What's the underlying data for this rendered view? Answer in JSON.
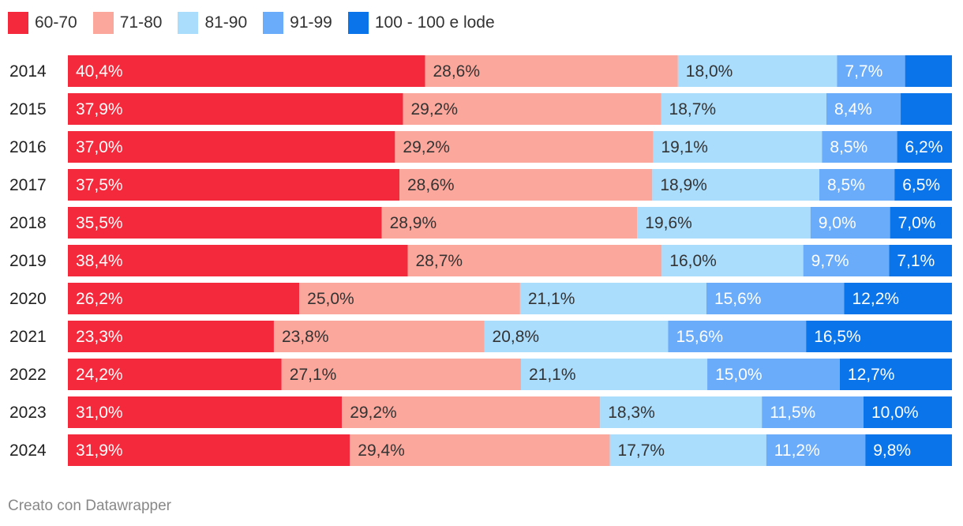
{
  "chart_data": {
    "type": "bar",
    "orientation": "horizontal",
    "stacked": true,
    "title": "",
    "xlabel": "",
    "ylabel": "",
    "xlim": [
      0,
      100
    ],
    "grid": false,
    "legend_position": "top-left",
    "categories": [
      "2014",
      "2015",
      "2016",
      "2017",
      "2018",
      "2019",
      "2020",
      "2021",
      "2022",
      "2023",
      "2024"
    ],
    "series": [
      {
        "name": "60-70",
        "color": "#f42a3c",
        "label_color": "#ffffff",
        "values": [
          40.4,
          37.9,
          37.0,
          37.5,
          35.5,
          38.4,
          26.2,
          23.3,
          24.2,
          31.0,
          31.9
        ],
        "labels": [
          "40,4%",
          "37,9%",
          "37,0%",
          "37,5%",
          "35,5%",
          "38,4%",
          "26,2%",
          "23,3%",
          "24,2%",
          "31,0%",
          "31,9%"
        ]
      },
      {
        "name": "71-80",
        "color": "#fca79c",
        "label_color": "#333333",
        "values": [
          28.6,
          29.2,
          29.2,
          28.6,
          28.9,
          28.7,
          25.0,
          23.8,
          27.1,
          29.2,
          29.4
        ],
        "labels": [
          "28,6%",
          "29,2%",
          "29,2%",
          "28,6%",
          "28,9%",
          "28,7%",
          "25,0%",
          "23,8%",
          "27,1%",
          "29,2%",
          "29,4%"
        ]
      },
      {
        "name": "81-90",
        "color": "#aadcfc",
        "label_color": "#333333",
        "values": [
          18.0,
          18.7,
          19.1,
          18.9,
          19.6,
          16.0,
          21.1,
          20.8,
          21.1,
          18.3,
          17.7
        ],
        "labels": [
          "18,0%",
          "18,7%",
          "19,1%",
          "18,9%",
          "19,6%",
          "16,0%",
          "21,1%",
          "20,8%",
          "21,1%",
          "18,3%",
          "17,7%"
        ]
      },
      {
        "name": "91-99",
        "color": "#6aabfa",
        "label_color": "#ffffff",
        "values": [
          7.7,
          8.4,
          8.5,
          8.5,
          9.0,
          9.7,
          15.6,
          15.6,
          15.0,
          11.5,
          11.2
        ],
        "labels": [
          "7,7%",
          "8,4%",
          "8,5%",
          "8,5%",
          "9,0%",
          "9,7%",
          "15,6%",
          "15,6%",
          "15,0%",
          "11,5%",
          "11,2%"
        ]
      },
      {
        "name": "100 - 100 e lode",
        "color": "#0a74ea",
        "label_color": "#ffffff",
        "values": [
          5.3,
          5.8,
          6.2,
          6.5,
          7.0,
          7.1,
          12.2,
          16.5,
          12.7,
          10.0,
          9.8
        ],
        "labels": [
          "",
          "",
          "6,2%",
          "6,5%",
          "7,0%",
          "7,1%",
          "12,2%",
          "16,5%",
          "12,7%",
          "10,0%",
          "9,8%"
        ]
      }
    ]
  },
  "footer": {
    "credit": "Creato con Datawrapper"
  }
}
